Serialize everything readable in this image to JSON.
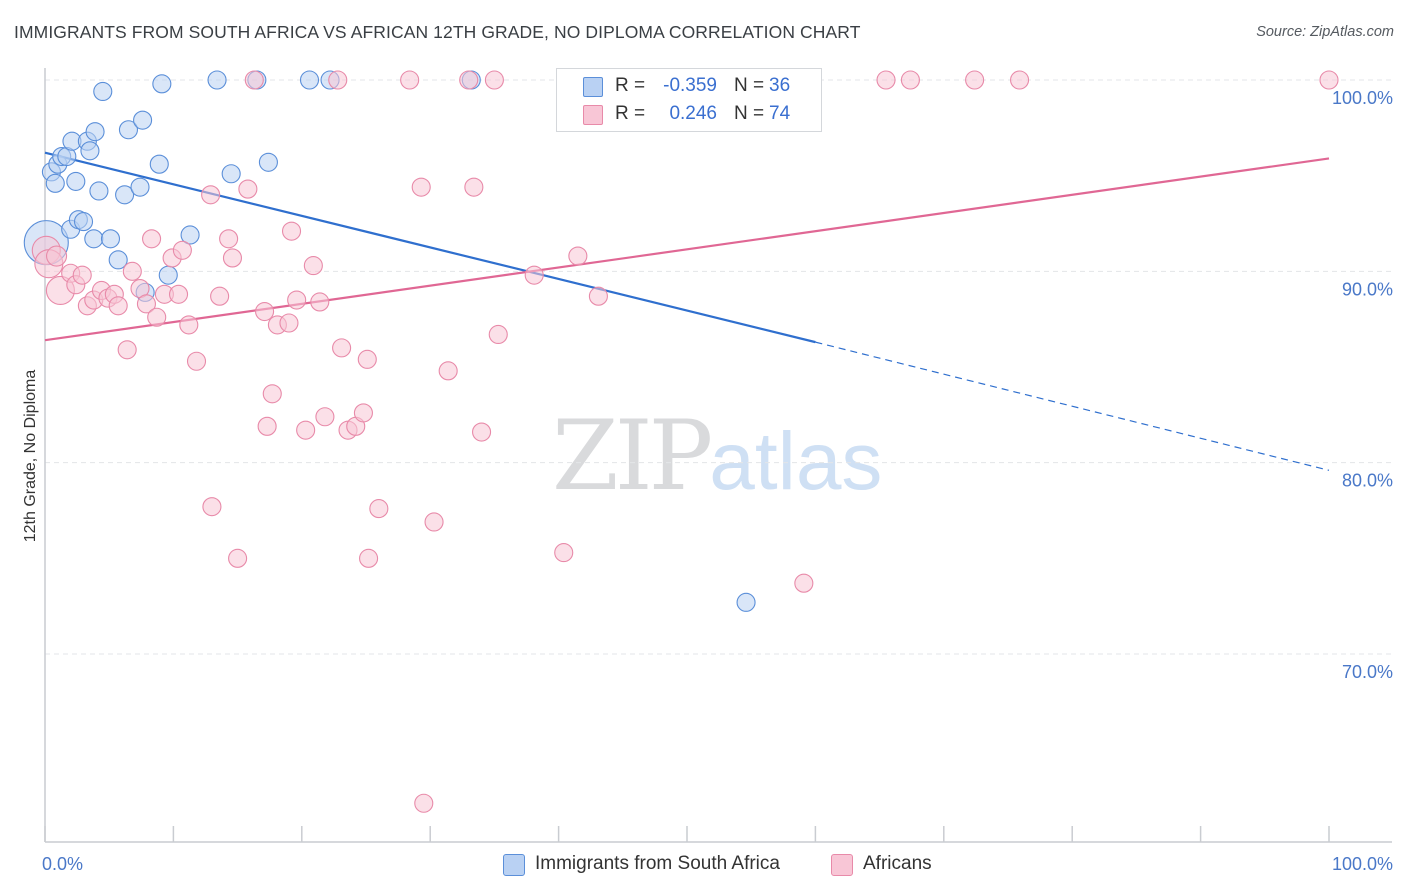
{
  "title": "IMMIGRANTS FROM SOUTH AFRICA VS AFRICAN 12TH GRADE, NO DIPLOMA CORRELATION CHART",
  "source": "Source: ZipAtlas.com",
  "watermark": {
    "zip": "ZIP",
    "atlas": "atlas"
  },
  "legend_top": {
    "rows": [
      {
        "r_label": "R =",
        "r_value": "-0.359",
        "n_label": "N =",
        "n_value": "36"
      },
      {
        "r_label": "R =",
        "r_value": "0.246",
        "n_label": "N =",
        "n_value": "74"
      }
    ]
  },
  "legend_bottom": [
    "Immigrants from South Africa",
    "Africans"
  ],
  "colors": {
    "blue_fill": "#b9d1f3",
    "blue_stroke": "#5b8fd9",
    "blue_line": "#2f6fce",
    "pink_fill": "#f8c6d6",
    "pink_stroke": "#e88aa9",
    "pink_line": "#e06794",
    "axis_text": "#4a78c8",
    "grid": "#e3e5e8"
  },
  "chart_data": {
    "type": "scatter",
    "title": "IMMIGRANTS FROM SOUTH AFRICA VS AFRICAN 12TH GRADE, NO DIPLOMA CORRELATION CHART",
    "xlabel": "",
    "ylabel": "12th Grade, No Diploma",
    "xlim": [
      0,
      100
    ],
    "ylim": [
      61,
      101.5
    ],
    "y_ticks": [
      {
        "value": 70,
        "label": "70.0%"
      },
      {
        "value": 80,
        "label": "80.0%"
      },
      {
        "value": 90,
        "label": "90.0%"
      },
      {
        "value": 100,
        "label": "100.0%"
      }
    ],
    "x_tick_labels": [
      {
        "value": 0,
        "label": "0.0%"
      },
      {
        "value": 100,
        "label": "100.0%"
      }
    ],
    "x_minor_ticks": [
      0,
      10,
      20,
      30,
      40,
      50,
      60,
      70,
      80,
      90,
      100
    ],
    "grid": true,
    "legend_position": "top-center",
    "series": [
      {
        "name": "Immigrants from South Africa",
        "color": "blue",
        "trend": {
          "x0": 0,
          "y0": 96.2,
          "x1": 60,
          "y1": 86.3,
          "dash_to_x": 100,
          "dash_to_y": 79.6
        },
        "points": [
          [
            0.1,
            91.5,
            22
          ],
          [
            0.5,
            95.2,
            9
          ],
          [
            0.8,
            94.6,
            9
          ],
          [
            1.0,
            95.6,
            9
          ],
          [
            1.3,
            96.0,
            9
          ],
          [
            1.7,
            96.0,
            9
          ],
          [
            2.0,
            92.2,
            9
          ],
          [
            2.1,
            96.8,
            9
          ],
          [
            2.4,
            94.7,
            9
          ],
          [
            2.6,
            92.7,
            9
          ],
          [
            3.0,
            92.6,
            9
          ],
          [
            3.3,
            96.8,
            9
          ],
          [
            3.5,
            96.3,
            9
          ],
          [
            3.8,
            91.7,
            9
          ],
          [
            3.9,
            97.3,
            9
          ],
          [
            4.2,
            94.2,
            9
          ],
          [
            4.5,
            99.4,
            9
          ],
          [
            5.1,
            91.7,
            9
          ],
          [
            5.7,
            90.6,
            9
          ],
          [
            6.2,
            94.0,
            9
          ],
          [
            6.5,
            97.4,
            9
          ],
          [
            7.4,
            94.4,
            9
          ],
          [
            7.6,
            97.9,
            9
          ],
          [
            7.8,
            88.9,
            9
          ],
          [
            8.9,
            95.6,
            9
          ],
          [
            9.1,
            99.8,
            9
          ],
          [
            9.6,
            89.8,
            9
          ],
          [
            11.3,
            91.9,
            9
          ],
          [
            13.4,
            100.0,
            9
          ],
          [
            14.5,
            95.1,
            9
          ],
          [
            16.5,
            100.0,
            9
          ],
          [
            17.4,
            95.7,
            9
          ],
          [
            20.6,
            100.0,
            9
          ],
          [
            22.2,
            100.0,
            9
          ],
          [
            33.2,
            100.0,
            9
          ],
          [
            54.6,
            72.7,
            9
          ]
        ]
      },
      {
        "name": "Africans",
        "color": "pink",
        "trend": {
          "x0": 0,
          "y0": 86.4,
          "x1": 100,
          "y1": 95.9
        },
        "points": [
          [
            0.1,
            91.1,
            14
          ],
          [
            0.3,
            90.4,
            14
          ],
          [
            0.9,
            90.8,
            10
          ],
          [
            1.2,
            89.0,
            14
          ],
          [
            2.0,
            89.9,
            9
          ],
          [
            2.4,
            89.3,
            9
          ],
          [
            2.9,
            89.8,
            9
          ],
          [
            3.3,
            88.2,
            9
          ],
          [
            3.8,
            88.5,
            9
          ],
          [
            4.4,
            89.0,
            9
          ],
          [
            4.9,
            88.6,
            9
          ],
          [
            5.4,
            88.8,
            9
          ],
          [
            5.7,
            88.2,
            9
          ],
          [
            6.4,
            85.9,
            9
          ],
          [
            6.8,
            90.0,
            9
          ],
          [
            7.4,
            89.1,
            9
          ],
          [
            7.9,
            88.3,
            9
          ],
          [
            8.3,
            91.7,
            9
          ],
          [
            8.7,
            87.6,
            9
          ],
          [
            9.3,
            88.8,
            9
          ],
          [
            9.9,
            90.7,
            9
          ],
          [
            10.4,
            88.8,
            9
          ],
          [
            10.7,
            91.1,
            9
          ],
          [
            11.2,
            87.2,
            9
          ],
          [
            11.8,
            85.3,
            9
          ],
          [
            12.9,
            94.0,
            9
          ],
          [
            13.0,
            77.7,
            9
          ],
          [
            13.6,
            88.7,
            9
          ],
          [
            14.3,
            91.7,
            9
          ],
          [
            14.6,
            90.7,
            9
          ],
          [
            15.0,
            75.0,
            9
          ],
          [
            15.8,
            94.3,
            9
          ],
          [
            16.3,
            100.0,
            9
          ],
          [
            17.1,
            87.9,
            9
          ],
          [
            17.3,
            81.9,
            9
          ],
          [
            17.7,
            83.6,
            9
          ],
          [
            18.1,
            87.2,
            9
          ],
          [
            19.0,
            87.3,
            9
          ],
          [
            19.2,
            92.1,
            9
          ],
          [
            19.6,
            88.5,
            9
          ],
          [
            20.3,
            81.7,
            9
          ],
          [
            20.9,
            90.3,
            9
          ],
          [
            21.4,
            88.4,
            9
          ],
          [
            21.8,
            82.4,
            9
          ],
          [
            22.8,
            100.0,
            9
          ],
          [
            23.1,
            86.0,
            9
          ],
          [
            23.6,
            81.7,
            9
          ],
          [
            24.2,
            81.9,
            9
          ],
          [
            24.8,
            82.6,
            9
          ],
          [
            25.1,
            85.4,
            9
          ],
          [
            25.2,
            75.0,
            9
          ],
          [
            26.0,
            77.6,
            9
          ],
          [
            28.4,
            100.0,
            9
          ],
          [
            29.3,
            94.4,
            9
          ],
          [
            29.5,
            62.2,
            9
          ],
          [
            30.3,
            76.9,
            9
          ],
          [
            31.4,
            84.8,
            9
          ],
          [
            33.0,
            100.0,
            9
          ],
          [
            33.4,
            94.4,
            9
          ],
          [
            34.0,
            81.6,
            9
          ],
          [
            35.0,
            100.0,
            9
          ],
          [
            35.3,
            86.7,
            9
          ],
          [
            38.1,
            89.8,
            9
          ],
          [
            40.4,
            75.3,
            9
          ],
          [
            41.5,
            90.8,
            9
          ],
          [
            43.1,
            88.7,
            9
          ],
          [
            54.2,
            100.0,
            9
          ],
          [
            57.1,
            99.0,
            9
          ],
          [
            59.1,
            73.7,
            9
          ],
          [
            65.5,
            100.0,
            9
          ],
          [
            67.4,
            100.0,
            9
          ],
          [
            72.4,
            100.0,
            9
          ],
          [
            75.9,
            100.0,
            9
          ],
          [
            100.0,
            100.0,
            9
          ]
        ]
      }
    ]
  }
}
